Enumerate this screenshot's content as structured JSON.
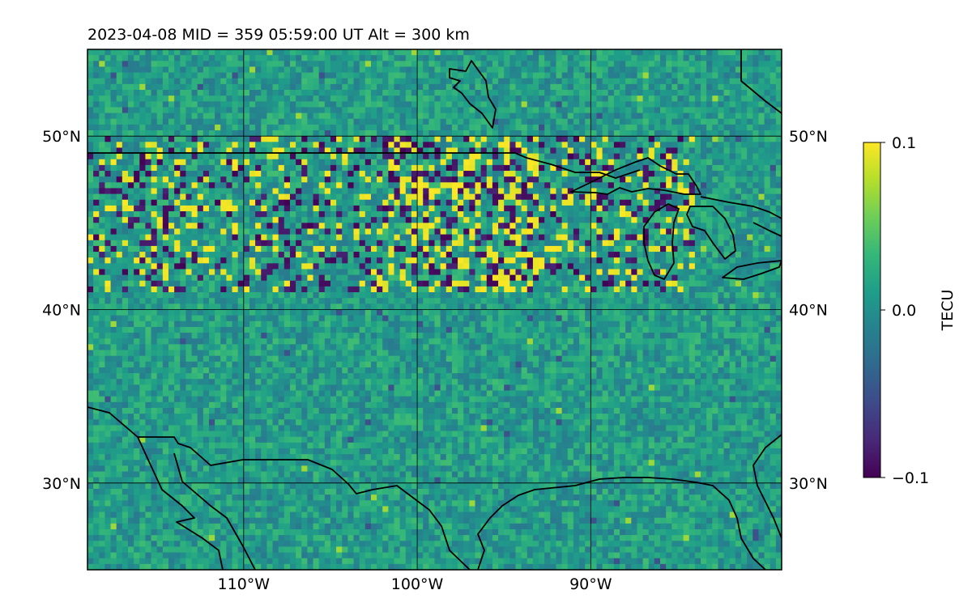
{
  "title": "2023-04-08  MID = 359    05:59:00  UT  Alt = 300 km",
  "map": {
    "lon_range": [
      -119,
      -79
    ],
    "lat_range": [
      25,
      55
    ],
    "projection": "plate-carree",
    "gridlines": true,
    "coastlines": true,
    "country_borders": true,
    "lon_ticks": [
      {
        "value": -110,
        "label": "110°W"
      },
      {
        "value": -100,
        "label": "100°W"
      },
      {
        "value": -90,
        "label": "90°W"
      }
    ],
    "lat_ticks": [
      {
        "value": 50,
        "label": "50°N"
      },
      {
        "value": 40,
        "label": "40°N"
      },
      {
        "value": 30,
        "label": "30°N"
      }
    ]
  },
  "colorbar": {
    "label": "TECU",
    "colormap": "viridis",
    "range": [
      -0.1,
      0.1
    ],
    "ticks": [
      {
        "value": 0.1,
        "label": "0.1"
      },
      {
        "value": 0.0,
        "label": "0.0"
      },
      {
        "value": -0.1,
        "label": "−0.1"
      }
    ],
    "colors": [
      "#440154",
      "#482878",
      "#3e4a89",
      "#31688e",
      "#26828e",
      "#1f9e89",
      "#35b779",
      "#6ece58",
      "#b5de2b",
      "#fde725"
    ]
  },
  "chart_data": {
    "type": "heatmap",
    "description_grid": "differential TEC map, noisy near 0 with strong +/-0.1 perturbations between ~42N and ~50N",
    "value_range": [
      -0.1,
      0.1
    ],
    "disturbed_band_lat": [
      41,
      50
    ],
    "background_value_mean": 0.0
  }
}
